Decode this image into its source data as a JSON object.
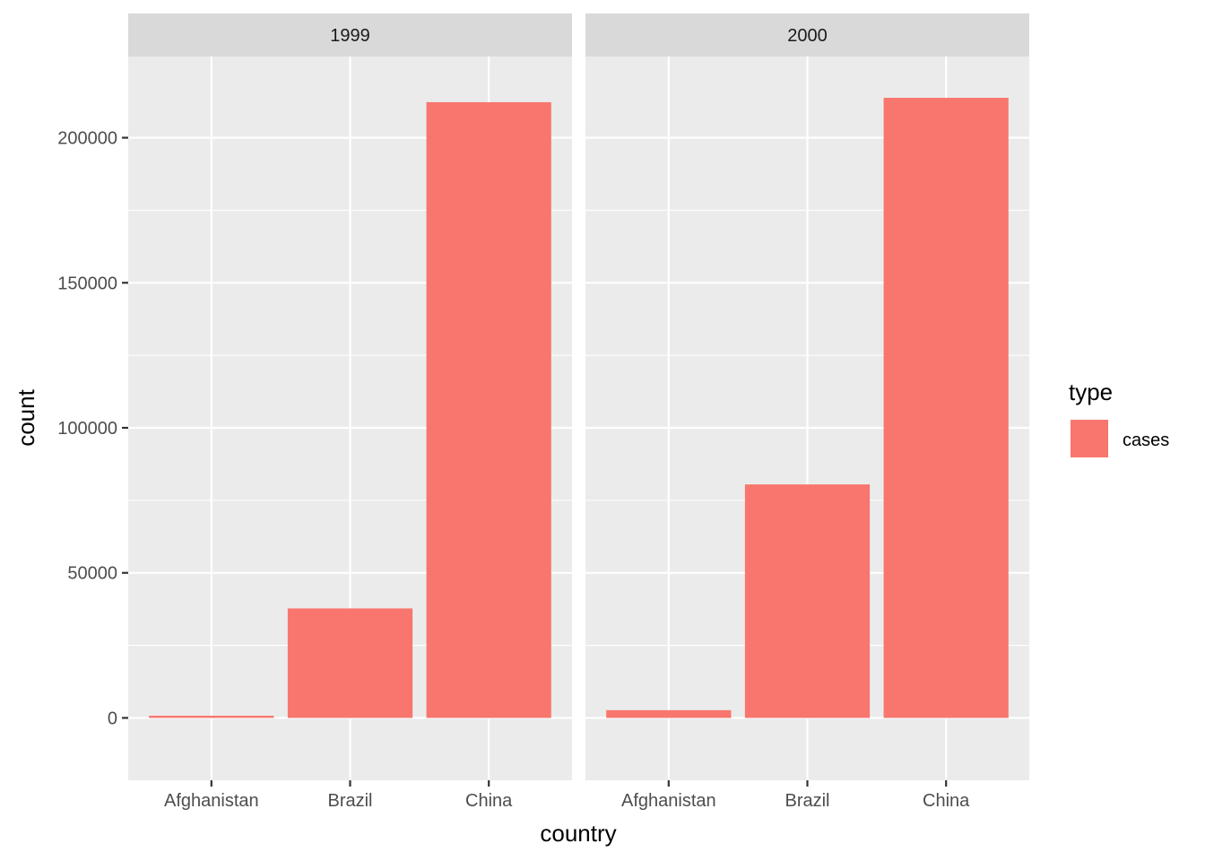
{
  "chart_data": {
    "type": "bar",
    "xlabel": "country",
    "ylabel": "count",
    "ylim": [
      -21500,
      228000
    ],
    "yticks": [
      0,
      50000,
      100000,
      150000,
      200000
    ],
    "ytick_labels": [
      "0",
      "50000",
      "100000",
      "150000",
      "200000"
    ],
    "categories": [
      "Afghanistan",
      "Brazil",
      "China"
    ],
    "legend": {
      "title": "type",
      "position": "right",
      "entries": [
        {
          "label": "cases",
          "color": "#F8766D"
        }
      ]
    },
    "facets": [
      {
        "label": "1999",
        "series": [
          {
            "name": "cases",
            "values": [
              745,
              37737,
              212258
            ]
          }
        ]
      },
      {
        "label": "2000",
        "series": [
          {
            "name": "cases",
            "values": [
              2666,
              80488,
              213766
            ]
          }
        ]
      }
    ],
    "colors": {
      "bar": "#F8766D",
      "panel_bg": "#EBEBEB",
      "strip_bg": "#D9D9D9",
      "grid": "#FFFFFF"
    },
    "grid": true
  }
}
